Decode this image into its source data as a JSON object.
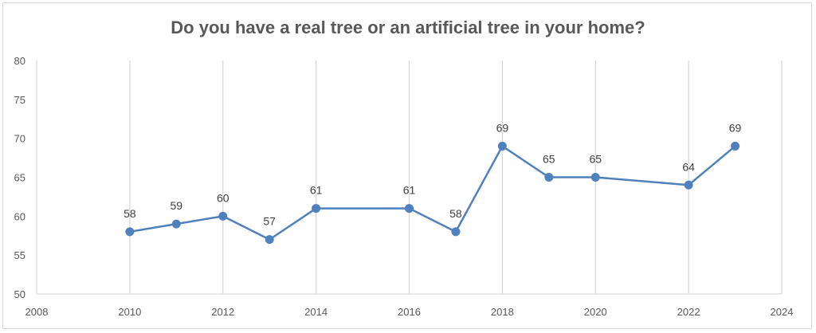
{
  "chart_data": {
    "type": "scatter",
    "title": "Do you have a real tree or an artificial tree in your home?",
    "xlabel": "",
    "ylabel": "",
    "x": [
      2010,
      2011,
      2012,
      2013,
      2014,
      2016,
      2017,
      2018,
      2019,
      2020,
      2022,
      2023
    ],
    "y": [
      58,
      59,
      60,
      57,
      61,
      61,
      58,
      69,
      65,
      65,
      64,
      69
    ],
    "xlim": [
      2008,
      2024
    ],
    "ylim": [
      50,
      80
    ],
    "xticks": [
      "2008",
      "2010",
      "2012",
      "2014",
      "2016",
      "2018",
      "2020",
      "2022",
      "2024"
    ],
    "yticks": [
      "50",
      "55",
      "60",
      "65",
      "70",
      "75",
      "80"
    ],
    "grid": "vertical",
    "legend": "none",
    "line_color": "#4f81bd",
    "grid_color": "#d9d9d9"
  }
}
